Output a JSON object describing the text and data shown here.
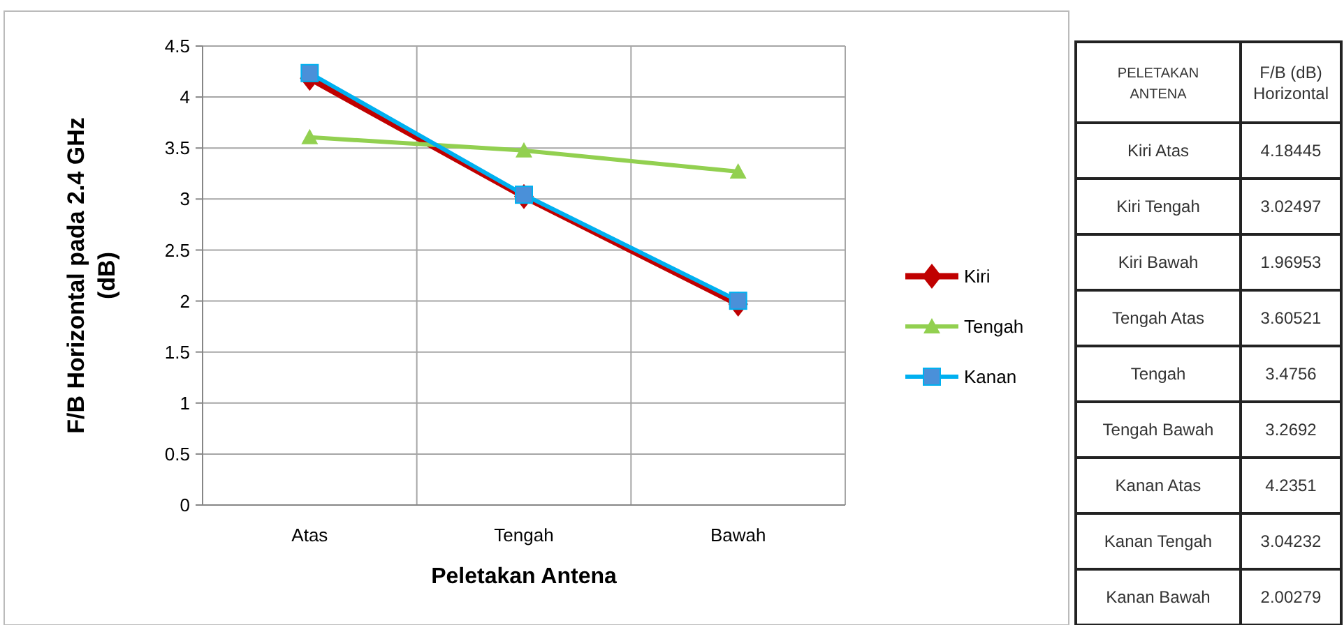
{
  "chart_data": [
    {
      "type": "line",
      "xlabel": "Peletakan Antena",
      "ylabel": "F/B Horizontal pada 2.4 GHz (dB)",
      "categories": [
        "Atas",
        "Tengah",
        "Bawah"
      ],
      "series": [
        {
          "name": "Kiri",
          "color": "#c00000",
          "marker": "diamond",
          "values": [
            4.18445,
            3.02497,
            1.96953
          ]
        },
        {
          "name": "Tengah",
          "color": "#92d050",
          "marker": "triangle",
          "values": [
            3.60521,
            3.4756,
            3.2692
          ]
        },
        {
          "name": "Kanan",
          "color": "#00b0f0",
          "marker": "square",
          "values": [
            4.2351,
            3.04232,
            2.00279
          ]
        }
      ],
      "ylim": [
        0,
        4.5
      ],
      "yticks": [
        0,
        0.5,
        1,
        1.5,
        2,
        2.5,
        3,
        3.5,
        4,
        4.5
      ],
      "grid": true,
      "legend": "right"
    },
    {
      "type": "other",
      "xlabel": "PELETAKAN ANTENA",
      "ylabel": "F/B (dB) Horizontal",
      "categories": [
        "Kiri Atas",
        "Kiri Tengah",
        "Kiri Bawah",
        "Tengah Atas",
        "Tengah",
        "Tengah Bawah",
        "Kanan Atas",
        "Kanan Tengah",
        "Kanan Bawah"
      ],
      "values": [
        4.18445,
        3.02497,
        1.96953,
        3.60521,
        3.4756,
        3.2692,
        4.2351,
        3.04232,
        2.00279
      ],
      "data_labels": true
    }
  ]
}
